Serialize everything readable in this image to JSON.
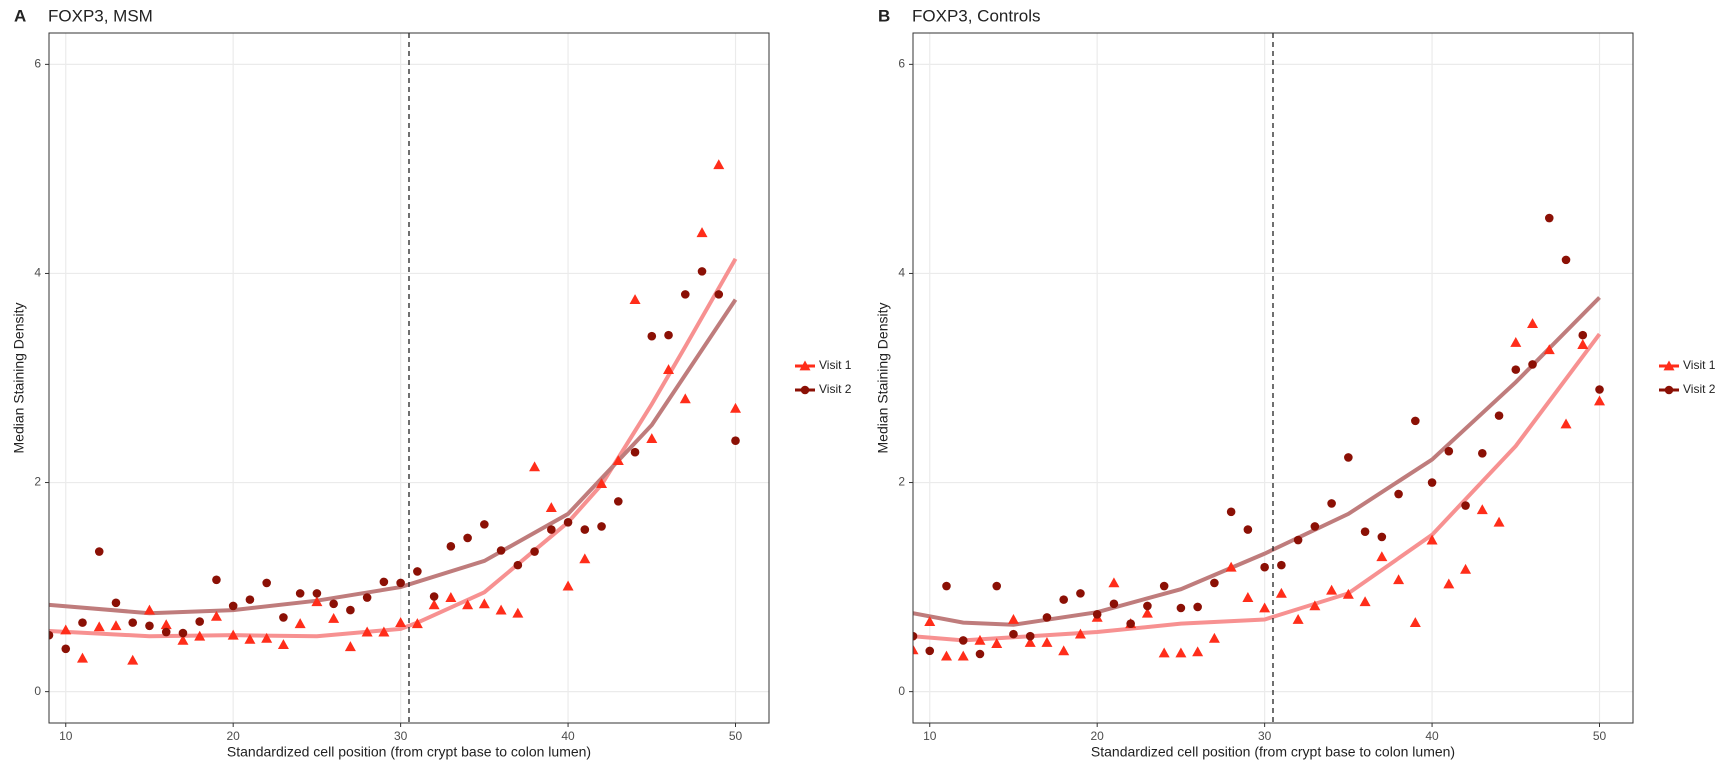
{
  "chart_data": [
    {
      "type": "scatter",
      "panel_label": "A",
      "title": "FOXP3, MSM",
      "x_label": "Standardized cell position (from crypt base to colon lumen)",
      "y_label": "Median Staining Density",
      "xlim": [
        9,
        52
      ],
      "ylim": [
        -0.3,
        6.3
      ],
      "xticks": [
        10,
        20,
        30,
        40,
        50
      ],
      "yticks": [
        0,
        2,
        4,
        6
      ],
      "grid": true,
      "vline": 30.5,
      "series": [
        {
          "name": "Visit 1",
          "color": "#ff2d1a",
          "marker": "triangle",
          "x": [
            10,
            11,
            12,
            13,
            14,
            15,
            16,
            17,
            18,
            19,
            20,
            21,
            22,
            23,
            24,
            25,
            26,
            27,
            28,
            29,
            30,
            31,
            32,
            33,
            34,
            35,
            36,
            37,
            38,
            39,
            40,
            41,
            42,
            43,
            44,
            45,
            46,
            47,
            48,
            49,
            50
          ],
          "values": [
            0.59,
            0.32,
            0.62,
            0.63,
            0.3,
            0.78,
            0.64,
            0.49,
            0.53,
            0.72,
            0.54,
            0.5,
            0.51,
            0.45,
            0.65,
            0.86,
            0.7,
            0.43,
            0.57,
            0.57,
            0.66,
            0.65,
            0.83,
            0.9,
            0.83,
            0.84,
            0.78,
            0.75,
            2.15,
            1.76,
            1.01,
            1.27,
            1.99,
            2.21,
            3.75,
            2.42,
            3.08,
            2.8,
            4.39,
            5.04,
            2.71
          ]
        },
        {
          "name": "Visit 2",
          "color": "#8b1005",
          "marker": "circle",
          "x": [
            9,
            10,
            11,
            12,
            13,
            14,
            15,
            16,
            17,
            18,
            19,
            20,
            21,
            22,
            23,
            24,
            25,
            26,
            27,
            28,
            29,
            30,
            31,
            32,
            33,
            34,
            35,
            36,
            37,
            38,
            39,
            40,
            41,
            42,
            43,
            44,
            45,
            46,
            47,
            48,
            49,
            50
          ],
          "values": [
            0.54,
            0.41,
            0.66,
            1.34,
            0.85,
            0.66,
            0.63,
            0.57,
            0.56,
            0.67,
            1.07,
            0.82,
            0.88,
            1.04,
            0.71,
            0.94,
            0.94,
            0.84,
            0.78,
            0.9,
            1.05,
            1.04,
            1.15,
            0.91,
            1.39,
            1.47,
            1.6,
            1.35,
            1.21,
            1.34,
            1.55,
            1.62,
            1.55,
            1.58,
            1.82,
            2.29,
            3.4,
            3.41,
            3.8,
            4.02,
            3.8,
            2.4
          ]
        }
      ],
      "smooth": [
        {
          "color": "#f79191",
          "x": [
            9,
            15,
            20,
            25,
            30,
            31,
            35,
            40,
            42,
            45,
            47,
            50
          ],
          "values": [
            0.58,
            0.53,
            0.54,
            0.53,
            0.6,
            0.66,
            0.95,
            1.62,
            1.98,
            2.75,
            3.3,
            4.14
          ]
        },
        {
          "color": "#bf7c7c",
          "x": [
            9,
            15,
            20,
            25,
            30,
            35,
            40,
            45,
            50
          ],
          "values": [
            0.83,
            0.75,
            0.78,
            0.87,
            1.0,
            1.25,
            1.7,
            2.55,
            3.75
          ]
        }
      ]
    },
    {
      "type": "scatter",
      "panel_label": "B",
      "title": "FOXP3, Controls",
      "x_label": "Standardized cell position (from crypt base to colon lumen)",
      "y_label": "Median Staining Density",
      "xlim": [
        9,
        52
      ],
      "ylim": [
        -0.3,
        6.3
      ],
      "xticks": [
        10,
        20,
        30,
        40,
        50
      ],
      "yticks": [
        0,
        2,
        4,
        6
      ],
      "grid": true,
      "vline": 30.5,
      "series": [
        {
          "name": "Visit 1",
          "color": "#ff2d1a",
          "marker": "triangle",
          "x": [
            9,
            10,
            11,
            12,
            13,
            14,
            15,
            16,
            17,
            18,
            19,
            20,
            21,
            22,
            23,
            24,
            25,
            26,
            27,
            28,
            29,
            30,
            31,
            32,
            33,
            34,
            35,
            36,
            37,
            38,
            39,
            40,
            41,
            42,
            43,
            44,
            45,
            46,
            47,
            48,
            49,
            50
          ],
          "values": [
            0.4,
            0.67,
            0.34,
            0.34,
            0.49,
            0.46,
            0.69,
            0.47,
            0.47,
            0.39,
            0.55,
            0.71,
            1.04,
            0.65,
            0.75,
            0.37,
            0.37,
            0.38,
            0.51,
            1.19,
            0.9,
            0.8,
            0.94,
            0.69,
            0.82,
            0.97,
            0.93,
            0.86,
            1.29,
            1.07,
            0.66,
            1.45,
            1.03,
            1.17,
            1.74,
            1.62,
            3.34,
            3.52,
            3.27,
            2.56,
            3.32,
            2.78
          ]
        },
        {
          "name": "Visit 2",
          "color": "#8b1005",
          "marker": "circle",
          "x": [
            9,
            10,
            11,
            12,
            13,
            14,
            15,
            16,
            17,
            18,
            19,
            20,
            21,
            22,
            23,
            24,
            25,
            26,
            27,
            28,
            29,
            30,
            31,
            32,
            33,
            34,
            35,
            36,
            37,
            38,
            39,
            40,
            41,
            42,
            43,
            44,
            45,
            46,
            47,
            48,
            49,
            50
          ],
          "values": [
            0.53,
            0.39,
            1.01,
            0.49,
            0.36,
            1.01,
            0.55,
            0.53,
            0.71,
            0.88,
            0.94,
            0.74,
            0.84,
            0.65,
            0.82,
            1.01,
            0.8,
            0.81,
            1.04,
            1.72,
            1.55,
            1.19,
            1.21,
            1.45,
            1.58,
            1.8,
            2.24,
            1.53,
            1.48,
            1.89,
            2.59,
            2.0,
            2.3,
            1.78,
            2.28,
            2.64,
            3.08,
            3.13,
            4.53,
            4.13,
            3.41,
            2.89
          ]
        }
      ],
      "smooth": [
        {
          "color": "#f79191",
          "x": [
            9,
            12,
            15,
            20,
            25,
            30,
            35,
            40,
            45,
            50
          ],
          "values": [
            0.53,
            0.49,
            0.52,
            0.57,
            0.65,
            0.69,
            0.94,
            1.5,
            2.35,
            3.42
          ]
        },
        {
          "color": "#bf7c7c",
          "x": [
            9,
            12,
            15,
            20,
            25,
            30,
            35,
            40,
            45,
            50
          ],
          "values": [
            0.75,
            0.66,
            0.64,
            0.76,
            0.98,
            1.32,
            1.7,
            2.22,
            2.96,
            3.77
          ]
        }
      ]
    }
  ]
}
